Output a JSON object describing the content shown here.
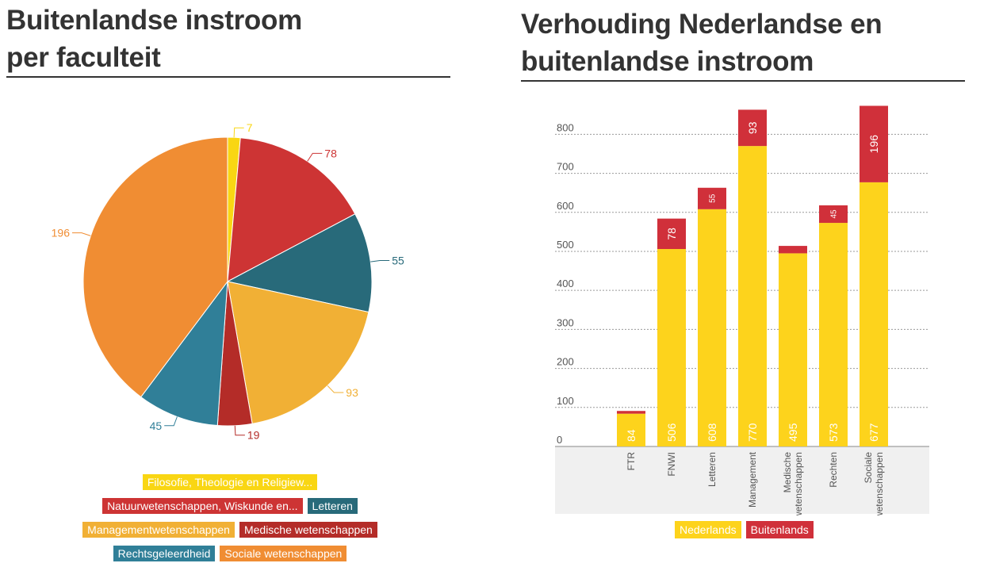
{
  "left_panel": {
    "title_line1": "Buitenlandse instroom",
    "title_line2": "per faculteit"
  },
  "right_panel": {
    "title_line1": "Verhouding Nederlandse en",
    "title_line2": "buitenlandse instroom"
  },
  "chart_data": [
    {
      "type": "pie",
      "title": "Buitenlandse instroom per faculteit",
      "slices": [
        {
          "label": "Filosofie, Theologie en Religiew...",
          "value": 7,
          "value_label": "7",
          "color": "#f9d613"
        },
        {
          "label": "Natuurwetenschappen, Wiskunde en...",
          "value": 78,
          "value_label": "78",
          "color": "#cd3434"
        },
        {
          "label": "Letteren",
          "value": 55,
          "value_label": "55",
          "color": "#286a7a"
        },
        {
          "label": "Managementwetenschappen",
          "value": 93,
          "value_label": "93",
          "color": "#f1b035"
        },
        {
          "label": "Medische wetenschappen",
          "value": 19,
          "value_label": "19",
          "color": "#b42c28"
        },
        {
          "label": "Rechtsgeleerdheid",
          "value": 45,
          "value_label": "45",
          "color": "#307f98"
        },
        {
          "label": "Sociale wetenschappen",
          "value": 196,
          "value_label": "196",
          "color": "#f08d33"
        }
      ],
      "legend_position": "bottom"
    },
    {
      "type": "bar",
      "stacked": true,
      "title": "Verhouding Nederlandse en buitenlandse instroom",
      "categories": [
        "FTR",
        "FNWI",
        "Letteren",
        "Management",
        "Medische wetenschappen",
        "Rechten",
        "Sociale wetenschappen"
      ],
      "category_lines": [
        [
          "FTR"
        ],
        [
          "FNWI"
        ],
        [
          "Letteren"
        ],
        [
          "Management"
        ],
        [
          "Medische",
          "wetenschappen"
        ],
        [
          "Rechten"
        ],
        [
          "Sociale",
          "wetenschappen"
        ]
      ],
      "series": [
        {
          "name": "Nederlands",
          "color": "#fdd31c",
          "values": [
            84,
            506,
            608,
            770,
            495,
            573,
            677
          ],
          "value_labels": [
            "84",
            "506",
            "608",
            "770",
            "495",
            "573",
            "677"
          ]
        },
        {
          "name": "Buitenlands",
          "color": "#d0303a",
          "values": [
            7,
            78,
            55,
            93,
            19,
            45,
            196
          ],
          "value_labels": [
            "",
            "78",
            "55",
            "93",
            "",
            "45",
            "196"
          ]
        }
      ],
      "y_ticks": [
        0,
        100,
        200,
        300,
        400,
        500,
        600,
        700,
        800
      ],
      "y_tick_labels": [
        "0",
        "100",
        "200",
        "300",
        "400",
        "500",
        "600",
        "700",
        "800"
      ],
      "ylim": [
        0,
        880
      ],
      "grid": true,
      "legend_position": "bottom"
    }
  ]
}
